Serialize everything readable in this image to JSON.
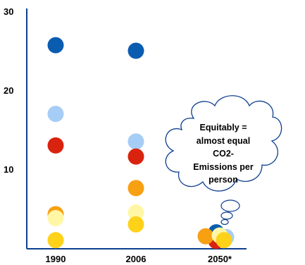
{
  "chart_data": {
    "type": "scatter",
    "categories": [
      "1990",
      "2006",
      "2050*"
    ],
    "y_ticks": [
      "10",
      "20",
      "30"
    ],
    "ylim": [
      0,
      30
    ],
    "grid": false,
    "series": [
      {
        "color": "#0a5cb0",
        "values": [
          25.7,
          25.0,
          2.0
        ]
      },
      {
        "color": "#a6cdf5",
        "values": [
          17.0,
          13.5,
          1.4
        ]
      },
      {
        "color": "#d9230f",
        "values": [
          13.0,
          11.6,
          0.9
        ]
      },
      {
        "color": "#f7a012",
        "values": [
          4.3,
          7.6,
          1.5
        ]
      },
      {
        "color": "#fff7a6",
        "values": [
          3.8,
          4.5,
          1.6
        ]
      },
      {
        "color": "#ffd21a",
        "values": [
          1.0,
          3.0,
          1.0
        ]
      }
    ],
    "annotation": {
      "lines": [
        "Equitably =",
        "almost equal",
        "CO2-",
        "Emissions per",
        "person"
      ]
    }
  }
}
